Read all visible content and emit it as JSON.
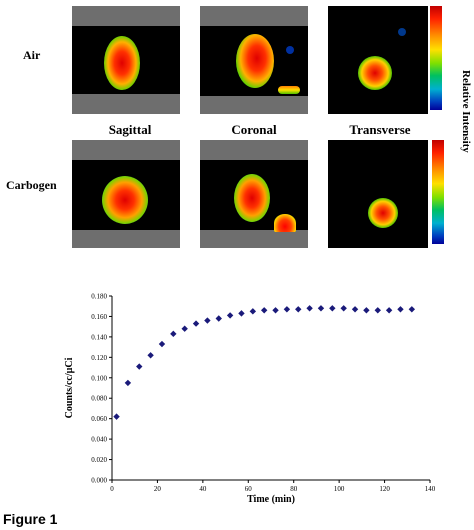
{
  "images": {
    "row_labels": [
      "Air",
      "Carbogen"
    ],
    "view_labels": [
      "Sagittal",
      "Coronal",
      "Transverse"
    ],
    "colorbar_label": "Relative Intensity"
  },
  "chart_data": {
    "type": "scatter",
    "title": "",
    "xlabel": "Time (min)",
    "ylabel": "Counts/cc/µCi",
    "xlim": [
      0,
      140
    ],
    "ylim": [
      0,
      0.18
    ],
    "x_ticks": [
      "0",
      "20",
      "40",
      "60",
      "80",
      "100",
      "120",
      "140"
    ],
    "y_ticks": [
      "0.000",
      "0.020",
      "0.040",
      "0.060",
      "0.080",
      "0.100",
      "0.120",
      "0.140",
      "0.160",
      "0.180"
    ],
    "marker_color": "#1a1a7a",
    "series": [
      {
        "points": [
          [
            2,
            0.062
          ],
          [
            7,
            0.095
          ],
          [
            12,
            0.111
          ],
          [
            17,
            0.122
          ],
          [
            22,
            0.133
          ],
          [
            27,
            0.143
          ],
          [
            32,
            0.148
          ],
          [
            37,
            0.153
          ],
          [
            42,
            0.156
          ],
          [
            47,
            0.158
          ],
          [
            52,
            0.161
          ],
          [
            57,
            0.163
          ],
          [
            62,
            0.165
          ],
          [
            67,
            0.166
          ],
          [
            72,
            0.166
          ],
          [
            77,
            0.167
          ],
          [
            82,
            0.167
          ],
          [
            87,
            0.168
          ],
          [
            92,
            0.168
          ],
          [
            97,
            0.168
          ],
          [
            102,
            0.168
          ],
          [
            107,
            0.167
          ],
          [
            112,
            0.166
          ],
          [
            117,
            0.166
          ],
          [
            122,
            0.166
          ],
          [
            127,
            0.167
          ],
          [
            132,
            0.167
          ]
        ]
      }
    ]
  },
  "footer": {
    "text": "Figure 1"
  }
}
